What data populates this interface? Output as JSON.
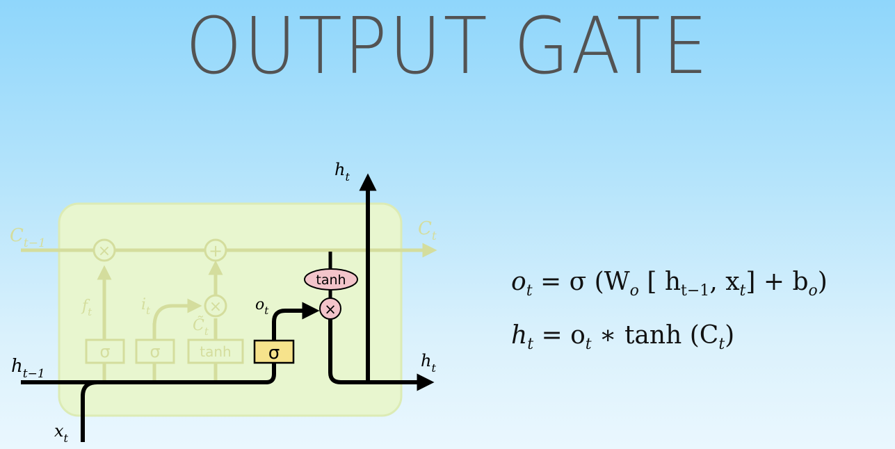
{
  "title": "OUTPUT GATE",
  "diagram": {
    "labels": {
      "c_prev": "C",
      "c_prev_sub": "t−1",
      "c_t": "C",
      "c_t_sub": "t",
      "h_prev": "h",
      "h_prev_sub": "t−1",
      "x_t": "x",
      "x_t_sub": "t",
      "h_t_top": "h",
      "h_t_top_sub": "t",
      "h_t_right": "h",
      "h_t_right_sub": "t",
      "f_t": "f",
      "f_t_sub": "t",
      "i_t": "i",
      "i_t_sub": "t",
      "c_tilde": "C̃",
      "c_tilde_sub": "t",
      "o_t": "o",
      "o_t_sub": "t"
    },
    "gates": {
      "forget_sigma": "σ",
      "input_sigma": "σ",
      "candidate_tanh": "tanh",
      "output_sigma": "σ",
      "output_tanh": "tanh"
    },
    "operators": {
      "forget_mult": "×",
      "add": "+",
      "input_mult": "×",
      "output_mult": "×"
    }
  },
  "equations": {
    "o": {
      "lhs": "o",
      "lhs_sub": "t",
      "eq": " = σ (W",
      "w_sub": "o",
      "br_open": "  [ h",
      "h_sub": "t−1",
      "comma": ", x",
      "x_sub": "t",
      "br_close": "]  +  b",
      "b_sub": "o",
      "paren": ")"
    },
    "h": {
      "lhs": "h",
      "lhs_sub": "t",
      "eq": " = o",
      "o_sub": "t",
      "rest": " ∗ tanh (C",
      "c_sub": "t",
      "paren": ")"
    }
  },
  "colors": {
    "cell_fill": "#e8f6cf",
    "faded": "#d4dd9d",
    "sigma_box": "#f6e38c",
    "tanh_pink": "#f3c4ca",
    "line": "#000000"
  }
}
